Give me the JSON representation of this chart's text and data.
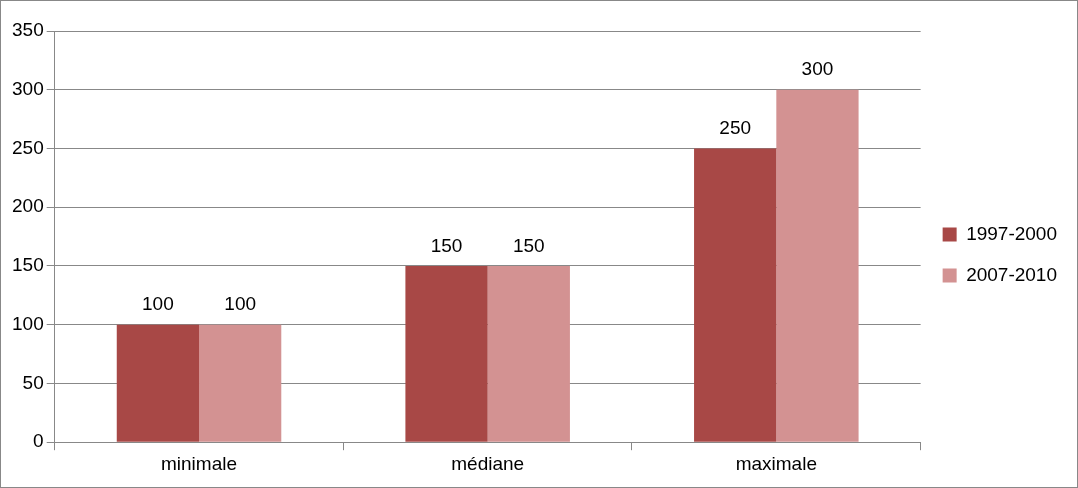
{
  "chart_data": {
    "type": "bar",
    "categories": [
      "minimale",
      "médiane",
      "maximale"
    ],
    "series": [
      {
        "name": "1997-2000",
        "color": "#a84846",
        "values": [
          100,
          150,
          250
        ]
      },
      {
        "name": "2007-2010",
        "color": "#d39292",
        "values": [
          100,
          150,
          300
        ]
      }
    ],
    "ylim": [
      0,
      350
    ],
    "yticks": [
      0,
      50,
      100,
      150,
      200,
      250,
      300,
      350
    ],
    "grid": "y",
    "legend": "right",
    "data_labels": true
  }
}
